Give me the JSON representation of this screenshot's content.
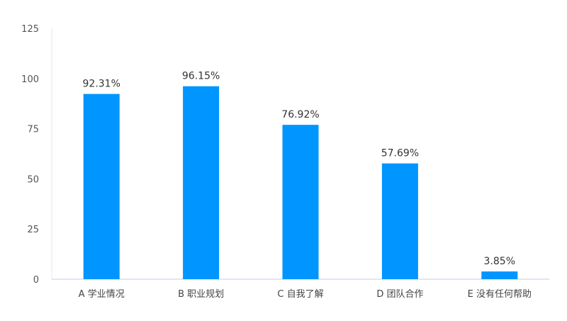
{
  "chart_data": {
    "type": "bar",
    "categories": [
      "A 学业情况",
      "B 职业规划",
      "C 自我了解",
      "D 团队合作",
      "E 没有任何帮助"
    ],
    "values": [
      92.31,
      96.15,
      76.92,
      57.69,
      3.85
    ],
    "data_labels": [
      "92.31%",
      "96.15%",
      "76.92%",
      "57.69%",
      "3.85%"
    ],
    "title": "",
    "xlabel": "",
    "ylabel": "",
    "ylim": [
      0,
      125
    ],
    "yticks": [
      "0",
      "25",
      "50",
      "75",
      "100",
      "125"
    ],
    "grid": false,
    "bar_color": "#0095FF"
  }
}
